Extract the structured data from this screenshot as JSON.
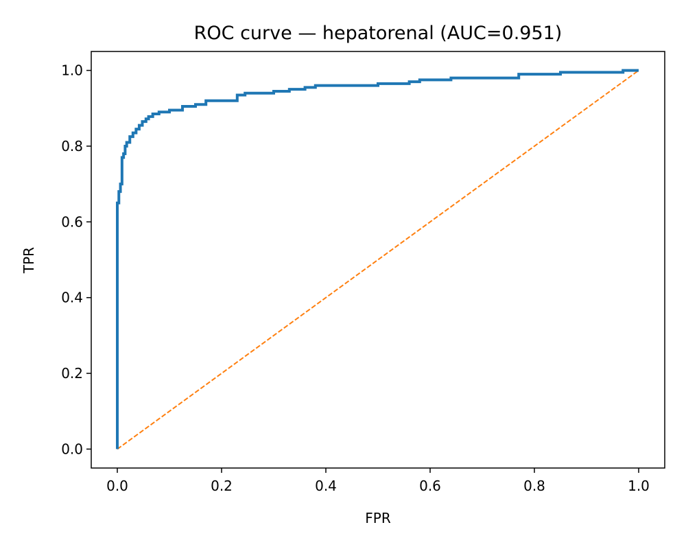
{
  "chart_data": {
    "type": "line",
    "title": "ROC curve — hepatorenal (AUC=0.951)",
    "xlabel": "FPR",
    "ylabel": "TPR",
    "xlim": [
      -0.05,
      1.05
    ],
    "ylim": [
      -0.05,
      1.05
    ],
    "xticks": [
      0.0,
      0.2,
      0.4,
      0.6,
      0.8,
      1.0
    ],
    "yticks": [
      0.0,
      0.2,
      0.4,
      0.6,
      0.8,
      1.0
    ],
    "xtick_labels": [
      "0.0",
      "0.2",
      "0.4",
      "0.6",
      "0.8",
      "1.0"
    ],
    "ytick_labels": [
      "0.0",
      "0.2",
      "0.4",
      "0.6",
      "0.8",
      "1.0"
    ],
    "grid": false,
    "legend": "none",
    "series": [
      {
        "color": "#1f77b4",
        "style": "solid",
        "x": [
          0.0,
          0.0,
          0.0,
          0.0,
          0.0,
          0.0,
          0.003,
          0.003,
          0.006,
          0.006,
          0.009,
          0.009,
          0.012,
          0.012,
          0.015,
          0.015,
          0.018,
          0.018,
          0.024,
          0.024,
          0.03,
          0.03,
          0.036,
          0.036,
          0.042,
          0.042,
          0.048,
          0.048,
          0.055,
          0.055,
          0.06,
          0.06,
          0.068,
          0.068,
          0.08,
          0.08,
          0.1,
          0.1,
          0.125,
          0.125,
          0.15,
          0.15,
          0.17,
          0.17,
          0.23,
          0.23,
          0.245,
          0.245,
          0.3,
          0.3,
          0.33,
          0.33,
          0.36,
          0.36,
          0.38,
          0.38,
          0.5,
          0.5,
          0.56,
          0.56,
          0.58,
          0.58,
          0.64,
          0.64,
          0.77,
          0.77,
          0.85,
          0.85,
          0.97,
          0.97,
          1.0
        ],
        "y": [
          0.0,
          0.3,
          0.53,
          0.54,
          0.6,
          0.65,
          0.65,
          0.68,
          0.68,
          0.7,
          0.7,
          0.77,
          0.77,
          0.78,
          0.78,
          0.8,
          0.8,
          0.81,
          0.81,
          0.825,
          0.825,
          0.835,
          0.835,
          0.845,
          0.845,
          0.855,
          0.855,
          0.865,
          0.865,
          0.872,
          0.872,
          0.878,
          0.878,
          0.885,
          0.885,
          0.89,
          0.89,
          0.895,
          0.895,
          0.905,
          0.905,
          0.91,
          0.91,
          0.92,
          0.92,
          0.935,
          0.935,
          0.94,
          0.94,
          0.945,
          0.945,
          0.95,
          0.95,
          0.955,
          0.955,
          0.96,
          0.96,
          0.965,
          0.965,
          0.97,
          0.97,
          0.975,
          0.975,
          0.98,
          0.98,
          0.99,
          0.99,
          0.995,
          0.995,
          1.0,
          1.0
        ]
      },
      {
        "color": "#ff7f0e",
        "style": "dashed",
        "x": [
          0.0,
          1.0
        ],
        "y": [
          0.0,
          1.0
        ]
      }
    ]
  }
}
